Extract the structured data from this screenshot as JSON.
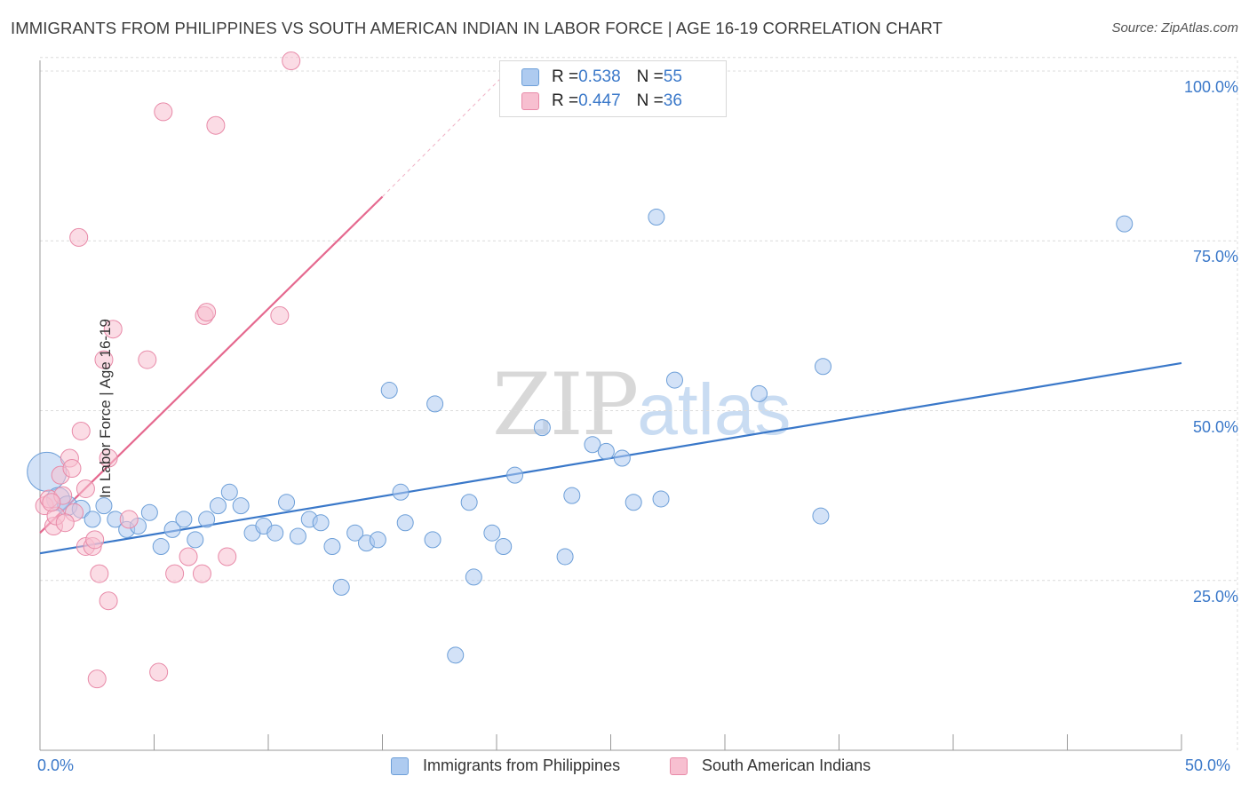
{
  "header": {
    "title": "IMMIGRANTS FROM PHILIPPINES VS SOUTH AMERICAN INDIAN IN LABOR FORCE | AGE 16-19 CORRELATION CHART",
    "source": "Source: ZipAtlas.com"
  },
  "watermark": {
    "zip": "ZIP",
    "atlas": "atlas"
  },
  "colors": {
    "blue_fill": "#aecbf0",
    "blue_stroke": "#6d9fd8",
    "blue_line": "#3a78c9",
    "pink_fill": "#f7bfd0",
    "pink_stroke": "#e88aa8",
    "pink_line": "#e5698f",
    "grid": "#dcdcdc",
    "axis": "#999999",
    "tick_text": "#3a78c9"
  },
  "legend": {
    "rows": [
      {
        "r_label": "R = ",
        "r_value": "0.538",
        "n_label": "N = ",
        "n_value": "55"
      },
      {
        "r_label": "R = ",
        "r_value": "0.447",
        "n_label": "N = ",
        "n_value": "36"
      }
    ]
  },
  "bottom_legend": {
    "blue": "Immigrants from Philippines",
    "pink": "South American Indians"
  },
  "chart_data": {
    "type": "scatter",
    "title": "IMMIGRANTS FROM PHILIPPINES VS SOUTH AMERICAN INDIAN IN LABOR FORCE | AGE 16-19 CORRELATION CHART",
    "xlabel": "",
    "ylabel": "In Labor Force | Age 16-19",
    "xlim": [
      0,
      50
    ],
    "ylim": [
      0,
      102
    ],
    "x_tick_labels": [
      "0.0%",
      "50.0%"
    ],
    "y_tick_labels": [
      "100.0%",
      "75.0%",
      "50.0%",
      "25.0%"
    ],
    "y_tick_values": [
      100,
      75,
      50,
      25
    ],
    "grid": true,
    "series": [
      {
        "name": "Immigrants from Philippines",
        "color": "blue",
        "R": 0.538,
        "N": 55,
        "trend": {
          "x0": 0,
          "y0": 29,
          "x1": 50,
          "y1": 57
        },
        "points": [
          [
            0.3,
            41,
            22
          ],
          [
            0.8,
            37,
            13
          ],
          [
            1.2,
            36,
            11
          ],
          [
            1.8,
            35.5,
            10
          ],
          [
            2.3,
            34,
            9
          ],
          [
            2.8,
            36,
            9
          ],
          [
            3.3,
            34,
            9
          ],
          [
            3.8,
            32.5,
            9
          ],
          [
            4.3,
            33,
            9
          ],
          [
            4.8,
            35,
            9
          ],
          [
            5.3,
            30,
            9
          ],
          [
            5.8,
            32.5,
            9
          ],
          [
            6.3,
            34,
            9
          ],
          [
            6.8,
            31,
            9
          ],
          [
            7.3,
            34,
            9
          ],
          [
            7.8,
            36,
            9
          ],
          [
            8.3,
            38,
            9
          ],
          [
            8.8,
            36,
            9
          ],
          [
            9.3,
            32,
            9
          ],
          [
            9.8,
            33,
            9
          ],
          [
            10.3,
            32,
            9
          ],
          [
            10.8,
            36.5,
            9
          ],
          [
            11.3,
            31.5,
            9
          ],
          [
            11.8,
            34,
            9
          ],
          [
            12.3,
            33.5,
            9
          ],
          [
            12.8,
            30,
            9
          ],
          [
            13.2,
            24,
            9
          ],
          [
            13.8,
            32,
            9
          ],
          [
            14.3,
            30.5,
            9
          ],
          [
            14.8,
            31,
            9
          ],
          [
            15.3,
            53,
            9
          ],
          [
            15.8,
            38,
            9
          ],
          [
            16.0,
            33.5,
            9
          ],
          [
            17.2,
            31,
            9
          ],
          [
            17.3,
            51,
            9
          ],
          [
            18.2,
            14,
            9
          ],
          [
            18.8,
            36.5,
            9
          ],
          [
            19.0,
            25.5,
            9
          ],
          [
            19.8,
            32,
            9
          ],
          [
            20.3,
            30,
            9
          ],
          [
            20.8,
            40.5,
            9
          ],
          [
            22.0,
            47.5,
            9
          ],
          [
            23.0,
            28.5,
            9
          ],
          [
            23.3,
            37.5,
            9
          ],
          [
            24.2,
            45,
            9
          ],
          [
            24.8,
            44,
            9
          ],
          [
            25.5,
            43,
            9
          ],
          [
            26.0,
            36.5,
            9
          ],
          [
            27.0,
            78.5,
            9
          ],
          [
            27.8,
            54.5,
            9
          ],
          [
            27.2,
            37,
            9
          ],
          [
            31.5,
            52.5,
            9
          ],
          [
            34.3,
            56.5,
            9
          ],
          [
            34.2,
            34.5,
            9
          ],
          [
            47.5,
            77.5,
            9
          ]
        ]
      },
      {
        "name": "South American Indians",
        "color": "pink",
        "R": 0.447,
        "N": 36,
        "trend": {
          "x0": 0,
          "y0": 32,
          "x1": 15,
          "y1": 81.5
        },
        "trend_dashed": {
          "x0": 15,
          "y0": 81.5,
          "x1": 20.5,
          "y1": 100
        },
        "points": [
          [
            0.2,
            36,
            10
          ],
          [
            0.4,
            37,
            10
          ],
          [
            0.6,
            33,
            10
          ],
          [
            0.7,
            34.5,
            10
          ],
          [
            0.9,
            40.5,
            10
          ],
          [
            1.0,
            37.5,
            10
          ],
          [
            1.3,
            43,
            10
          ],
          [
            1.4,
            41.5,
            10
          ],
          [
            1.5,
            35,
            10
          ],
          [
            1.7,
            75.5,
            10
          ],
          [
            1.8,
            47,
            10
          ],
          [
            2.0,
            38.5,
            10
          ],
          [
            2.0,
            30,
            10
          ],
          [
            2.3,
            30,
            10
          ],
          [
            2.4,
            31,
            10
          ],
          [
            2.5,
            10.5,
            10
          ],
          [
            2.6,
            26,
            10
          ],
          [
            2.8,
            57.5,
            10
          ],
          [
            3.0,
            22,
            10
          ],
          [
            3.0,
            43,
            10
          ],
          [
            3.2,
            62,
            10
          ],
          [
            3.9,
            34,
            10
          ],
          [
            4.7,
            57.5,
            10
          ],
          [
            5.2,
            11.5,
            10
          ],
          [
            5.4,
            94,
            10
          ],
          [
            5.9,
            26,
            10
          ],
          [
            6.5,
            28.5,
            10
          ],
          [
            7.1,
            26,
            10
          ],
          [
            7.2,
            64,
            10
          ],
          [
            7.3,
            64.5,
            10
          ],
          [
            7.7,
            92,
            10
          ],
          [
            8.2,
            28.5,
            10
          ],
          [
            10.5,
            64,
            10
          ],
          [
            11.0,
            101.5,
            10
          ],
          [
            1.1,
            33.5,
            10
          ],
          [
            0.5,
            36.5,
            10
          ]
        ]
      }
    ]
  }
}
